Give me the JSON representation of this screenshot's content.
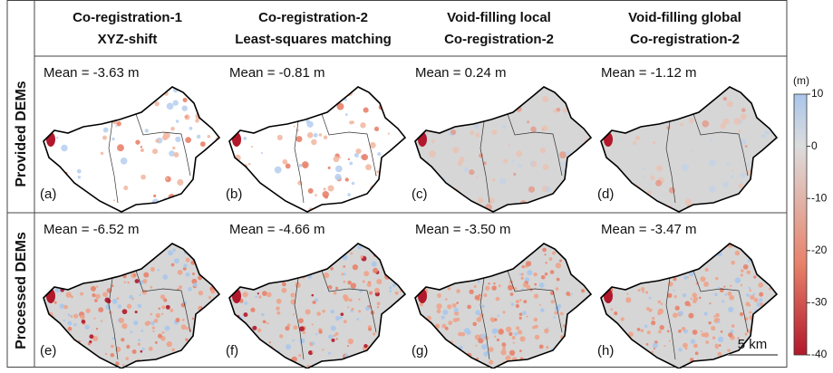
{
  "columns": [
    {
      "line1": "Co-registration-1",
      "line2": "XYZ-shift"
    },
    {
      "line1": "Co-registration-2",
      "line2": "Least-squares matching"
    },
    {
      "line1": "Void-filling local",
      "line2": "Co-registration-2"
    },
    {
      "line1": "Void-filling global",
      "line2": "Co-registration-2"
    }
  ],
  "rows": [
    {
      "label": "Provided DEMs",
      "panels": [
        {
          "mean": "Mean = -3.63 m",
          "letter": "(a)"
        },
        {
          "mean": "Mean = -0.81 m",
          "letter": "(b)"
        },
        {
          "mean": "Mean = 0.24 m",
          "letter": "(c)"
        },
        {
          "mean": "Mean = -1.12 m",
          "letter": "(d)"
        }
      ]
    },
    {
      "label": "Processed DEMs",
      "panels": [
        {
          "mean": "Mean = -6.52 m",
          "letter": "(e)"
        },
        {
          "mean": "Mean = -4.66 m",
          "letter": "(f)"
        },
        {
          "mean": "Mean = -3.50 m",
          "letter": "(g)"
        },
        {
          "mean": "Mean = -3.47 m",
          "letter": "(h)"
        }
      ]
    }
  ],
  "colorbar": {
    "unit": "(m)",
    "lim": [
      -40,
      10
    ],
    "ticks": [
      10,
      0,
      -10,
      -20,
      -30,
      -40
    ]
  },
  "scale_bar": "5 km"
}
